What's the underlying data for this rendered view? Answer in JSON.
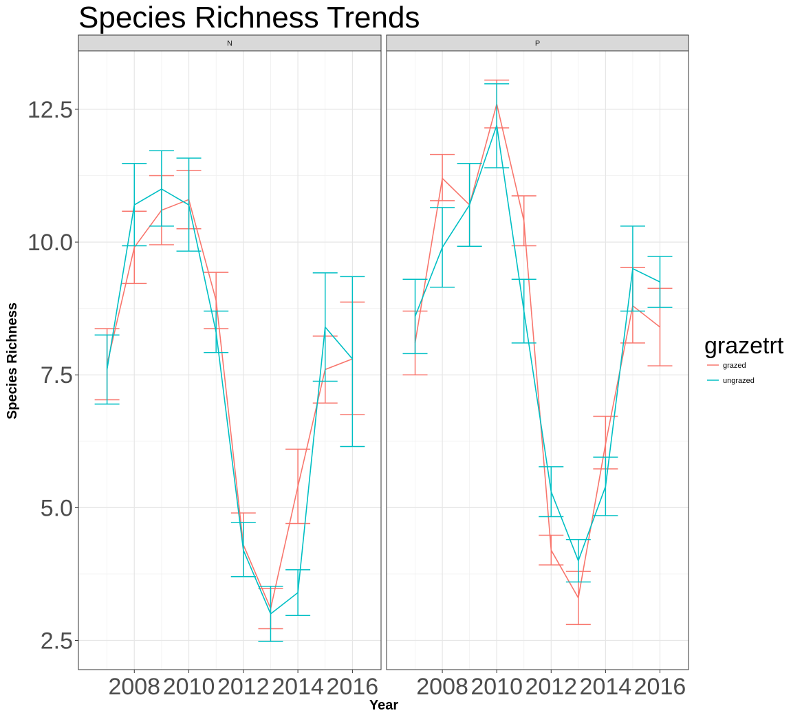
{
  "chart_data": {
    "type": "line",
    "title": "Species Richness Trends",
    "xlabel": "Year",
    "ylabel": "Species Richness",
    "ylim": [
      1.95,
      13.6
    ],
    "xlim": [
      2005.95,
      2017.05
    ],
    "yticks": [
      2.5,
      5.0,
      7.5,
      10.0,
      12.5
    ],
    "ytick_labels": [
      "2.5",
      "5.0",
      "7.5",
      "10.0",
      "12.5"
    ],
    "xticks": [
      2008,
      2010,
      2012,
      2014,
      2016
    ],
    "xtick_labels": [
      "2008",
      "2010",
      "2012",
      "2014",
      "2016"
    ],
    "grid": true,
    "legend": {
      "title": "grazetrt",
      "position": "right",
      "entries": [
        {
          "name": "grazed",
          "color": "#F8766D"
        },
        {
          "name": "ungrazed",
          "color": "#00BFC4"
        }
      ]
    },
    "panels": [
      {
        "strip": "N",
        "series": [
          {
            "name": "grazed",
            "color": "#F8766D",
            "x": [
              2007,
              2008,
              2009,
              2010,
              2011,
              2012,
              2013,
              2014,
              2015,
              2016
            ],
            "y": [
              7.7,
              9.9,
              10.6,
              10.8,
              8.9,
              4.3,
              3.1,
              5.4,
              7.6,
              7.8
            ],
            "ymin": [
              7.03,
              9.22,
              9.95,
              10.25,
              8.37,
              3.7,
              2.72,
              4.7,
              6.97,
              6.75
            ],
            "ymax": [
              8.37,
              10.58,
              11.25,
              11.35,
              9.43,
              4.9,
              3.48,
              6.1,
              8.23,
              8.87
            ]
          },
          {
            "name": "ungrazed",
            "color": "#00BFC4",
            "x": [
              2007,
              2008,
              2009,
              2010,
              2011,
              2012,
              2013,
              2014,
              2015,
              2016
            ],
            "y": [
              7.6,
              10.7,
              11.0,
              10.7,
              8.3,
              4.2,
              3.0,
              3.4,
              8.4,
              7.8
            ],
            "ymin": [
              6.95,
              9.93,
              10.3,
              9.83,
              7.92,
              3.7,
              2.48,
              2.97,
              7.38,
              6.15
            ],
            "ymax": [
              8.25,
              11.48,
              11.72,
              11.58,
              8.7,
              4.72,
              3.52,
              3.83,
              9.42,
              9.35
            ]
          }
        ]
      },
      {
        "strip": "P",
        "series": [
          {
            "name": "grazed",
            "color": "#F8766D",
            "x": [
              2007,
              2008,
              2009,
              2010,
              2011,
              2012,
              2013,
              2014,
              2015,
              2016
            ],
            "y": [
              8.1,
              11.2,
              10.7,
              12.6,
              10.4,
              4.2,
              3.3,
              6.2,
              8.8,
              8.4
            ],
            "ymin": [
              7.5,
              10.78,
              9.92,
              12.15,
              9.93,
              3.92,
              2.8,
              5.73,
              8.1,
              7.67
            ],
            "ymax": [
              8.7,
              11.65,
              11.48,
              13.05,
              10.87,
              4.48,
              3.8,
              6.72,
              9.52,
              9.13
            ]
          },
          {
            "name": "ungrazed",
            "color": "#00BFC4",
            "x": [
              2007,
              2008,
              2009,
              2010,
              2011,
              2012,
              2013,
              2014,
              2015,
              2016
            ],
            "y": [
              8.6,
              9.9,
              10.7,
              12.2,
              8.7,
              5.3,
              4.0,
              5.4,
              9.5,
              9.25
            ],
            "ymin": [
              7.9,
              9.15,
              9.92,
              11.4,
              8.1,
              4.83,
              3.6,
              4.85,
              8.7,
              8.77
            ],
            "ymax": [
              9.3,
              10.65,
              11.48,
              12.98,
              9.3,
              5.77,
              4.4,
              5.95,
              10.3,
              9.73
            ]
          }
        ]
      }
    ]
  }
}
